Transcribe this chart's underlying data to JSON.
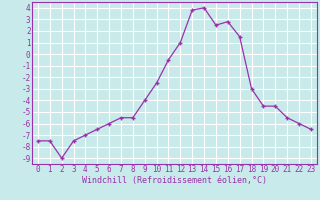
{
  "x": [
    0,
    1,
    2,
    3,
    4,
    5,
    6,
    7,
    8,
    9,
    10,
    11,
    12,
    13,
    14,
    15,
    16,
    17,
    18,
    19,
    20,
    21,
    22,
    23
  ],
  "y": [
    -7.5,
    -7.5,
    -9.0,
    -7.5,
    -7.0,
    -6.5,
    -6.0,
    -5.5,
    -5.5,
    -4.0,
    -2.5,
    -0.5,
    1.0,
    3.8,
    4.0,
    2.5,
    2.8,
    1.5,
    -3.0,
    -4.5,
    -4.5,
    -5.5,
    -6.0,
    -6.5
  ],
  "line_color": "#9932aa",
  "marker": "+",
  "marker_size": 3,
  "marker_lw": 1.0,
  "bg_color": "#c8eaea",
  "grid_color": "#ffffff",
  "xlabel": "Windchill (Refroidissement éolien,°C)",
  "xlim": [
    -0.5,
    23.5
  ],
  "ylim": [
    -9.5,
    4.5
  ],
  "yticks": [
    4,
    3,
    2,
    1,
    0,
    -1,
    -2,
    -3,
    -4,
    -5,
    -6,
    -7,
    -8,
    -9
  ],
  "xticks": [
    0,
    1,
    2,
    3,
    4,
    5,
    6,
    7,
    8,
    9,
    10,
    11,
    12,
    13,
    14,
    15,
    16,
    17,
    18,
    19,
    20,
    21,
    22,
    23
  ],
  "label_color": "#9932aa",
  "tick_fontsize": 5.5,
  "xlabel_fontsize": 6.0
}
